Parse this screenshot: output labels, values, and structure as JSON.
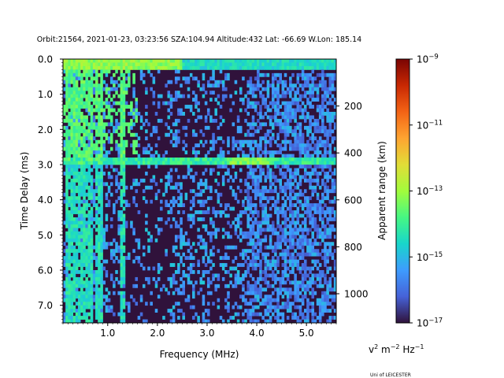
{
  "chart_data": {
    "type": "heatmap",
    "title": "Orbit:21564, 2021-01-23, 03:23:56 SZA:104.94 Altitude:432 Lat: -66.69 W.Lon: 185.14",
    "xlabel": "Frequency (MHz)",
    "ylabel": "Time Delay (ms)",
    "y2label": "Apparent range (km)",
    "xlim": [
      0.1,
      5.6
    ],
    "ylim": [
      7.5,
      0.0
    ],
    "x_ticks": [
      1.0,
      2.0,
      3.0,
      4.0,
      5.0
    ],
    "x_tick_labels": [
      "1.0",
      "2.0",
      "3.0",
      "4.0",
      "5.0"
    ],
    "y_ticks": [
      0.0,
      1.0,
      2.0,
      3.0,
      4.0,
      5.0,
      6.0,
      7.0
    ],
    "y_tick_labels": [
      "0.0",
      "1.0",
      "2.0",
      "3.0",
      "4.0",
      "5.0",
      "6.0",
      "7.0"
    ],
    "y2_ticks_km": [
      200,
      400,
      600,
      800,
      1000
    ],
    "y2_tick_labels": [
      "200",
      "400",
      "600",
      "800",
      "1000"
    ],
    "km_per_ms": 149.9,
    "colorscale": "turbo",
    "color_range_log10": [
      -17,
      -9
    ],
    "colorbar_ticks_exp": [
      -9,
      -11,
      -13,
      -15,
      -17
    ],
    "colorbar_tick_labels": [
      "10",
      "10",
      "10",
      "10",
      "10"
    ],
    "colorbar_tick_exponents": [
      "−9",
      "−11",
      "−13",
      "−15",
      "−17"
    ],
    "colorbar_unit": {
      "base1": "v",
      "exp1": "2",
      "mid": " m",
      "exp2": "−2",
      "end": " Hz",
      "exp3": "−1"
    },
    "features": {
      "vertical_lines_mhz": [
        0.16,
        0.22,
        0.26,
        0.32,
        0.38,
        0.45,
        0.52,
        0.6,
        0.68,
        0.76,
        0.85,
        1.3
      ],
      "horizontal_echo_ms": 2.9,
      "surface_band_ms": [
        0.1,
        0.35
      ],
      "plasma_resonance_cutoff_mhz": 1.32,
      "noise_bright_region_mhz": [
        3.8,
        5.6
      ]
    },
    "credit": "Uni of LEICESTER"
  }
}
